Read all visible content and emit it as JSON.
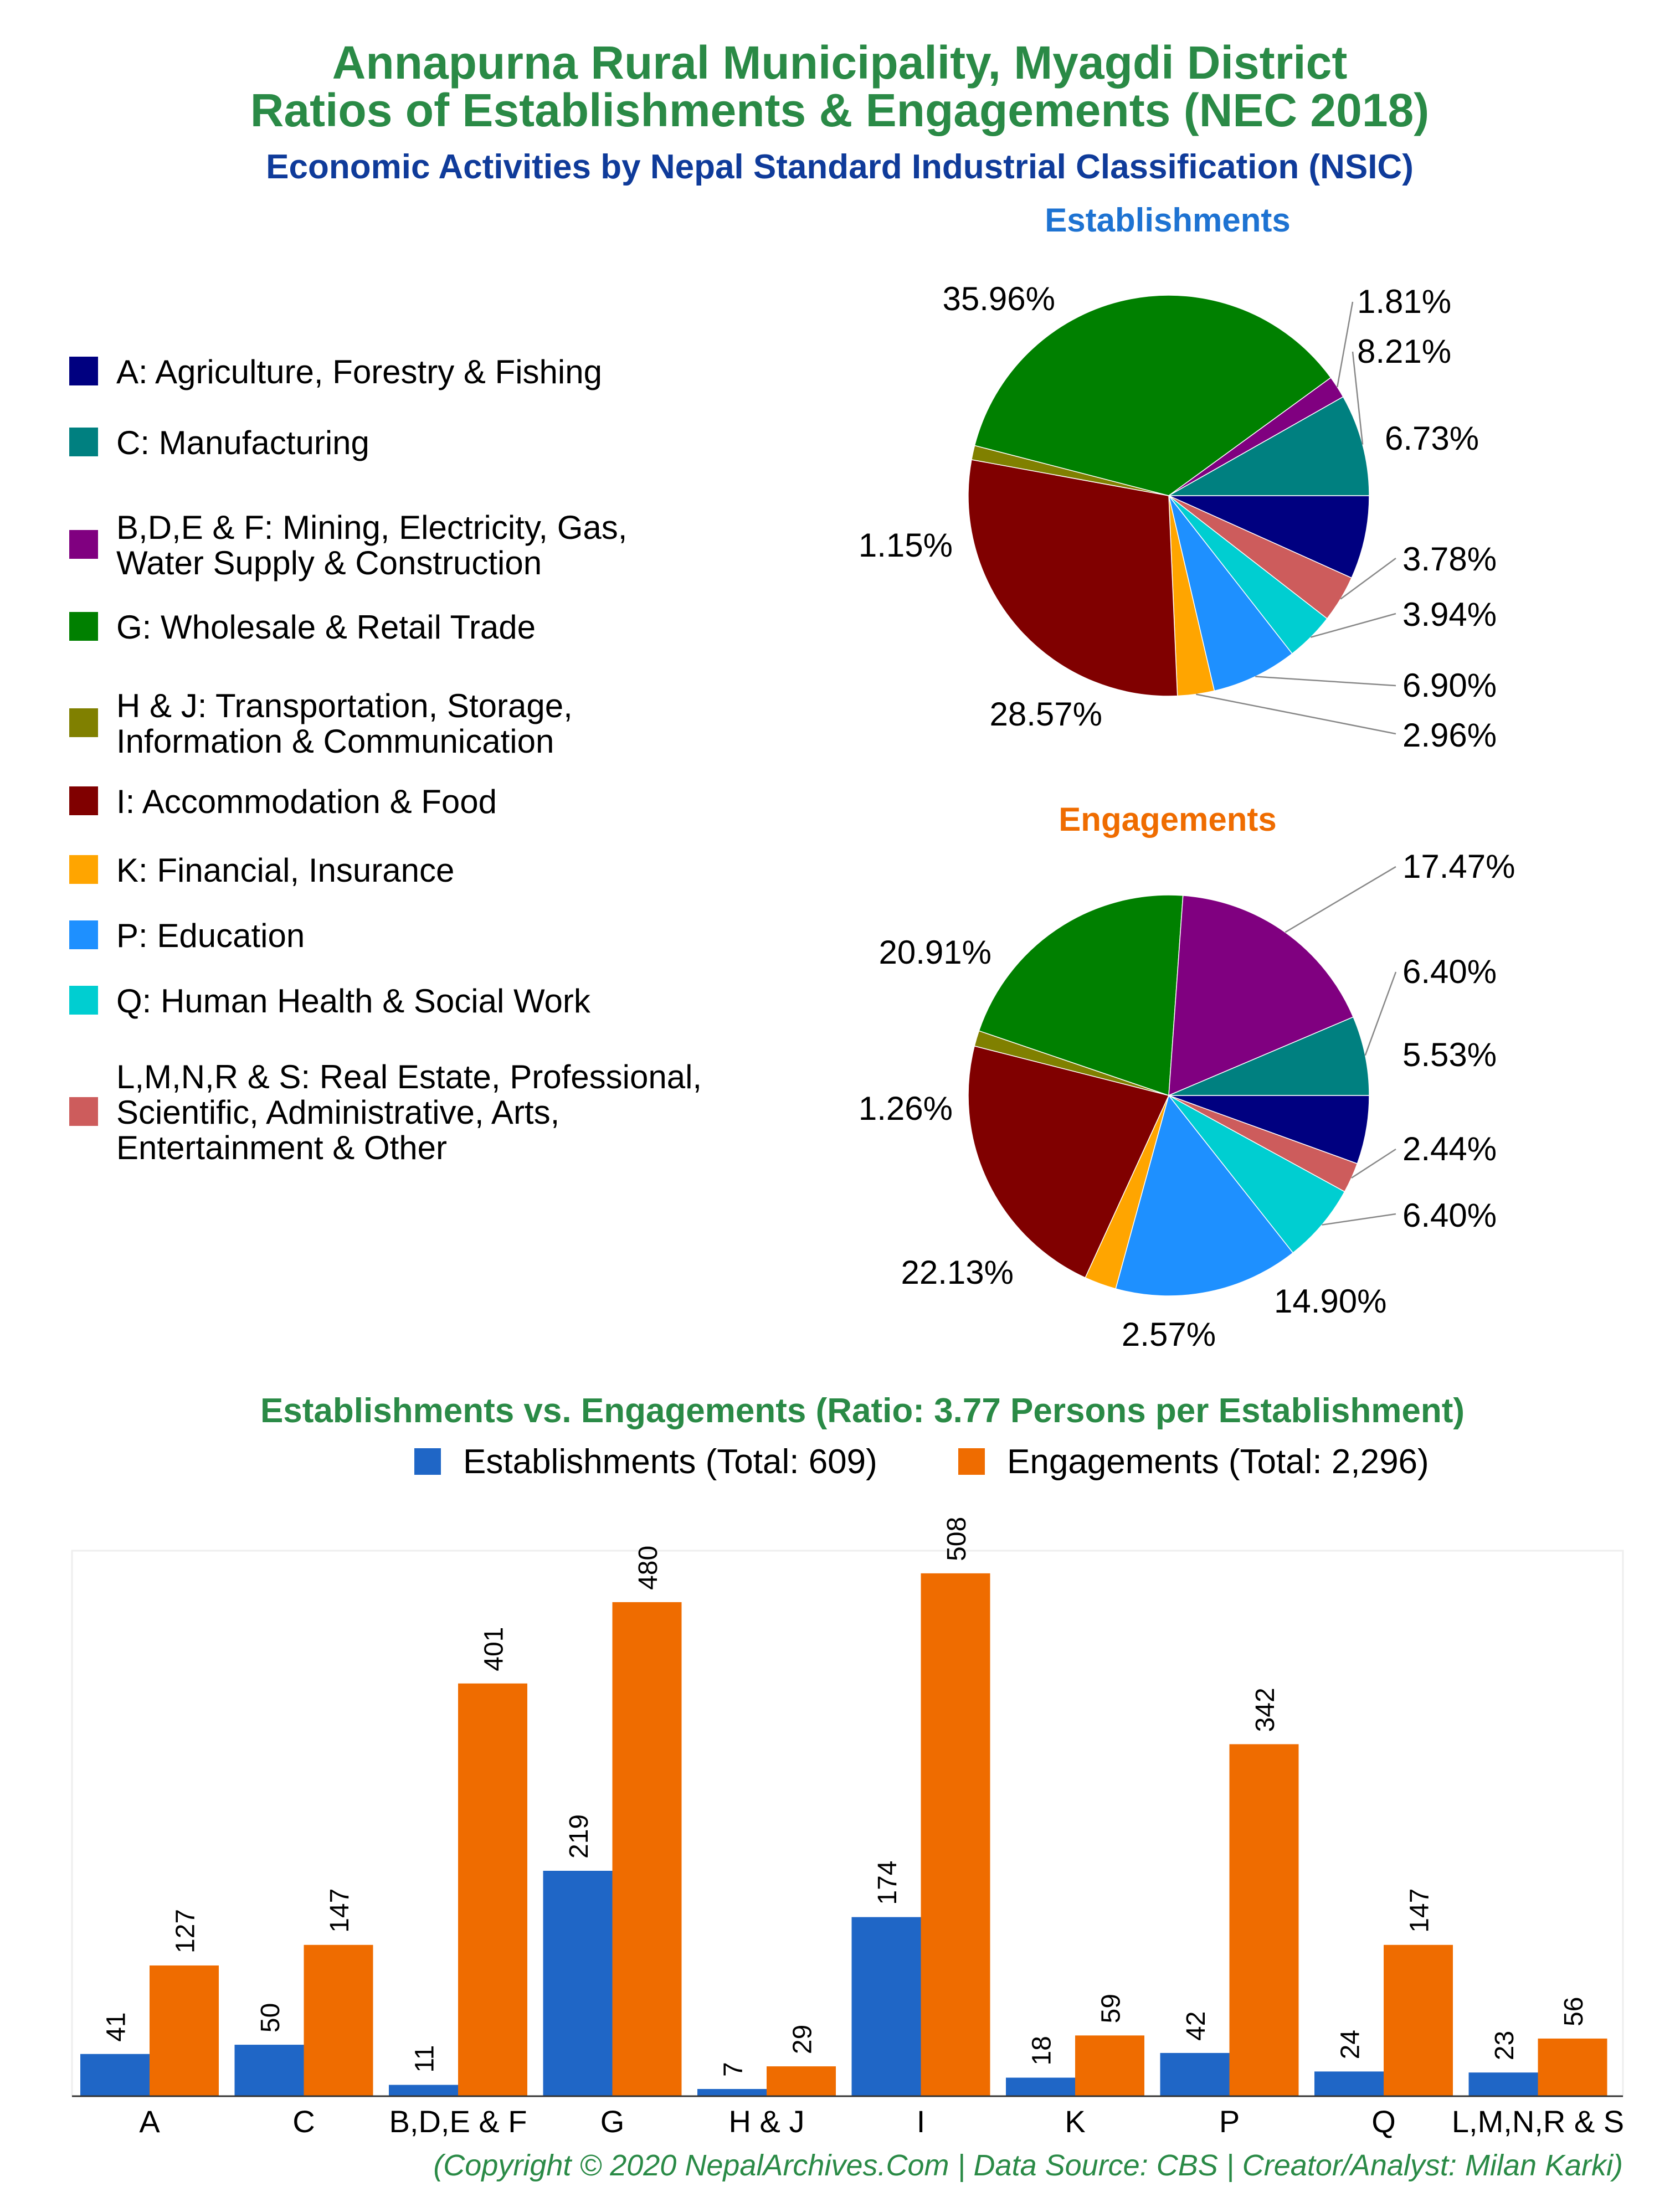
{
  "header": {
    "title_line1": "Annapurna Rural Municipality, Myagdi District",
    "title_line2": "Ratios of Establishments & Engagements (NEC 2018)",
    "subtitle": "Economic Activities by Nepal Standard Industrial Classification (NSIC)"
  },
  "colors": {
    "title": "#2a8a46",
    "subtitle": "#0f3b9a",
    "establishments_title": "#1e73d2",
    "engagements_title": "#ef6c00",
    "bar_establishments": "#1f66c6",
    "bar_engagements": "#ef6c00"
  },
  "legend": [
    {
      "code": "A",
      "label": "A: Agriculture, Forestry & Fishing",
      "color": "#000080"
    },
    {
      "code": "C",
      "label": "C: Manufacturing",
      "color": "#008080"
    },
    {
      "code": "BDEF",
      "label": "B,D,E & F: Mining, Electricity, Gas,\nWater Supply & Construction",
      "color": "#800080"
    },
    {
      "code": "G",
      "label": "G: Wholesale & Retail Trade",
      "color": "#008000"
    },
    {
      "code": "HJ",
      "label": "H & J: Transportation, Storage,\nInformation & Communication",
      "color": "#808000"
    },
    {
      "code": "I",
      "label": "I: Accommodation & Food",
      "color": "#800000"
    },
    {
      "code": "K",
      "label": "K: Financial, Insurance",
      "color": "#ffa500"
    },
    {
      "code": "P",
      "label": "P: Education",
      "color": "#1e90ff"
    },
    {
      "code": "Q",
      "label": "Q: Human Health & Social Work",
      "color": "#00ced1"
    },
    {
      "code": "LMNRS",
      "label": "L,M,N,R & S: Real Estate, Professional,\nScientific, Administrative, Arts,\nEntertainment & Other",
      "color": "#cd5c5c"
    }
  ],
  "chart_data": [
    {
      "type": "pie",
      "title": "Establishments",
      "slices": [
        {
          "code": "A",
          "value": 6.73,
          "label": "6.73%"
        },
        {
          "code": "LMNRS",
          "value": 3.78,
          "label": "3.78%"
        },
        {
          "code": "Q",
          "value": 3.94,
          "label": "3.94%"
        },
        {
          "code": "P",
          "value": 6.9,
          "label": "6.90%"
        },
        {
          "code": "K",
          "value": 2.96,
          "label": "2.96%"
        },
        {
          "code": "I",
          "value": 28.57,
          "label": "28.57%"
        },
        {
          "code": "HJ",
          "value": 1.15,
          "label": "1.15%"
        },
        {
          "code": "G",
          "value": 35.96,
          "label": "35.96%"
        },
        {
          "code": "BDEF",
          "value": 1.81,
          "label": "1.81%"
        },
        {
          "code": "C",
          "value": 8.21,
          "label": "8.21%"
        }
      ]
    },
    {
      "type": "pie",
      "title": "Engagements",
      "slices": [
        {
          "code": "A",
          "value": 5.53,
          "label": "5.53%"
        },
        {
          "code": "LMNRS",
          "value": 2.44,
          "label": "2.44%"
        },
        {
          "code": "Q",
          "value": 6.4,
          "label": "6.40%"
        },
        {
          "code": "P",
          "value": 14.9,
          "label": "14.90%"
        },
        {
          "code": "K",
          "value": 2.57,
          "label": "2.57%"
        },
        {
          "code": "I",
          "value": 22.13,
          "label": "22.13%"
        },
        {
          "code": "HJ",
          "value": 1.26,
          "label": "1.26%"
        },
        {
          "code": "G",
          "value": 20.91,
          "label": "20.91%"
        },
        {
          "code": "BDEF",
          "value": 17.47,
          "label": "17.47%"
        },
        {
          "code": "C",
          "value": 6.4,
          "label": "6.40%"
        }
      ]
    },
    {
      "type": "bar",
      "title": "Establishments vs. Engagements (Ratio: 3.77 Persons per Establishment)",
      "categories": [
        "A",
        "C",
        "B,D,E & F",
        "G",
        "H & J",
        "I",
        "K",
        "P",
        "Q",
        "L,M,N,R & S"
      ],
      "series": [
        {
          "name": "Establishments (Total: 609)",
          "values": [
            41,
            50,
            11,
            219,
            7,
            174,
            18,
            42,
            24,
            23
          ]
        },
        {
          "name": "Engagements (Total: 2,296)",
          "values": [
            127,
            147,
            401,
            480,
            29,
            508,
            59,
            342,
            147,
            56
          ]
        }
      ],
      "ylim": [
        0,
        530
      ],
      "grid": false,
      "legend_position": "top"
    }
  ],
  "footer": {
    "credit": "(Copyright © 2020 NepalArchives.Com | Data Source: CBS | Creator/Analyst: Milan Karki)"
  }
}
